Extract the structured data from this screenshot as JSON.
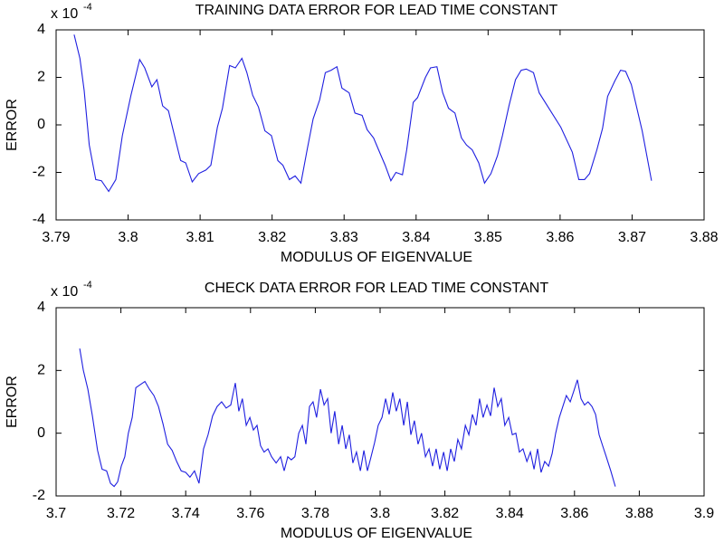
{
  "chart_data": [
    {
      "type": "line",
      "title": "TRAINING DATA ERROR FOR LEAD TIME CONSTANT",
      "xlabel": "MODULUS OF EIGENVALUE",
      "ylabel": "ERROR",
      "y_scale_base": "x 10",
      "y_scale_exponent": "-4",
      "xlim": [
        3.79,
        3.88
      ],
      "xticks": [
        3.79,
        3.8,
        3.81,
        3.82,
        3.83,
        3.84,
        3.85,
        3.86,
        3.87,
        3.88
      ],
      "ylim": [
        -4,
        4
      ],
      "yticks": [
        -4,
        -2,
        0,
        2,
        4
      ],
      "x": [
        3.7925,
        3.7933,
        3.7939,
        3.7946,
        3.7955,
        3.7963,
        3.7973,
        3.7983,
        3.7992,
        3.8004,
        3.8016,
        3.8023,
        3.8033,
        3.804,
        3.8048,
        3.8056,
        3.8066,
        3.8073,
        3.808,
        3.8089,
        3.8098,
        3.8108,
        3.8115,
        3.8124,
        3.8131,
        3.8141,
        3.8149,
        3.8158,
        3.8165,
        3.8173,
        3.8181,
        3.819,
        3.8199,
        3.8208,
        3.8215,
        3.8224,
        3.8232,
        3.824,
        3.8249,
        3.8257,
        3.8266,
        3.8274,
        3.8282,
        3.829,
        3.8297,
        3.8307,
        3.8315,
        3.8325,
        3.8332,
        3.8341,
        3.835,
        3.8357,
        3.8365,
        3.8372,
        3.8381,
        3.8387,
        3.8396,
        3.8402,
        3.8413,
        3.842,
        3.8429,
        3.8437,
        3.8445,
        3.8454,
        3.8463,
        3.847,
        3.8478,
        3.8487,
        3.8495,
        3.8504,
        3.8513,
        3.852,
        3.8529,
        3.8538,
        3.8546,
        3.8553,
        3.8563,
        3.8571,
        3.8601,
        3.8617,
        3.8626,
        3.8634,
        3.8641,
        3.8651,
        3.8659,
        3.8666,
        3.8676,
        3.8684,
        3.8691,
        3.8699,
        3.8714,
        3.8727
      ],
      "series": [
        {
          "color": "#1f1fe0",
          "values": [
            3.8,
            2.8,
            1.45,
            -0.84,
            -2.3,
            -2.35,
            -2.8,
            -2.3,
            -0.45,
            1.25,
            2.75,
            2.4,
            1.6,
            1.9,
            0.8,
            0.6,
            -0.65,
            -1.5,
            -1.6,
            -2.4,
            -2.05,
            -1.9,
            -1.7,
            -0.1,
            0.7,
            2.5,
            2.4,
            2.8,
            2.2,
            1.25,
            0.75,
            -0.25,
            -0.45,
            -1.5,
            -1.7,
            -2.3,
            -2.15,
            -2.45,
            -1.0,
            0.25,
            1.05,
            2.2,
            2.3,
            2.45,
            1.55,
            1.35,
            0.5,
            0.4,
            -0.2,
            -0.55,
            -1.2,
            -1.7,
            -2.35,
            -2.0,
            -2.1,
            -1.05,
            0.95,
            1.15,
            2.0,
            2.4,
            2.45,
            1.35,
            0.7,
            0.5,
            -0.55,
            -0.85,
            -1.05,
            -1.6,
            -2.45,
            -2.05,
            -1.3,
            -0.45,
            0.8,
            1.9,
            2.3,
            2.35,
            2.2,
            1.35,
            -0.1,
            -1.15,
            -2.3,
            -2.3,
            -2.05,
            -1.05,
            -0.15,
            1.2,
            1.85,
            2.3,
            2.25,
            1.7,
            -0.25,
            -2.35
          ]
        }
      ]
    },
    {
      "type": "line",
      "title": "CHECK DATA ERROR FOR LEAD TIME CONSTANT",
      "xlabel": "MODULUS OF EIGENVALUE",
      "ylabel": "ERROR",
      "y_scale_base": "x 10",
      "y_scale_exponent": "-4",
      "xlim": [
        3.7,
        3.9
      ],
      "xticks": [
        3.7,
        3.72,
        3.74,
        3.76,
        3.78,
        3.8,
        3.82,
        3.84,
        3.86,
        3.88,
        3.9
      ],
      "ylim": [
        -2,
        4
      ],
      "yticks": [
        -2,
        0,
        2,
        4
      ],
      "x": [
        3.7073,
        3.7084,
        3.7098,
        3.7112,
        3.7128,
        3.7142,
        3.7156,
        3.7168,
        3.7179,
        3.719,
        3.7201,
        3.7212,
        3.7223,
        3.7235,
        3.7246,
        3.726,
        3.7274,
        3.7288,
        3.7302,
        3.7316,
        3.733,
        3.7344,
        3.7358,
        3.7372,
        3.7386,
        3.74,
        3.7413,
        3.7427,
        3.7441,
        3.7455,
        3.7469,
        3.7483,
        3.7497,
        3.7511,
        3.7525,
        3.7539,
        3.7553,
        3.7564,
        3.7575,
        3.7587,
        3.7598,
        3.7609,
        3.762,
        3.7631,
        3.7642,
        3.7654,
        3.7665,
        3.7679,
        3.7693,
        3.7704,
        3.7715,
        3.7726,
        3.7737,
        3.7749,
        3.776,
        3.7771,
        3.7782,
        3.7793,
        3.7804,
        3.7816,
        3.7827,
        3.7838,
        3.7849,
        3.786,
        3.7872,
        3.7883,
        3.7894,
        3.7905,
        3.7916,
        3.7927,
        3.7939,
        3.795,
        3.7961,
        3.7972,
        3.7983,
        3.7994,
        3.8006,
        3.8017,
        3.8028,
        3.8039,
        3.805,
        3.8061,
        3.8073,
        3.8084,
        3.8095,
        3.8106,
        3.8117,
        3.8128,
        3.814,
        3.8151,
        3.8162,
        3.8173,
        3.8184,
        3.8196,
        3.8207,
        3.8218,
        3.8229,
        3.824,
        3.8251,
        3.8263,
        3.8274,
        3.8285,
        3.8296,
        3.8307,
        3.8318,
        3.833,
        3.8341,
        3.8352,
        3.8363,
        3.8374,
        3.8385,
        3.8397,
        3.8408,
        3.8419,
        3.843,
        3.8441,
        3.8453,
        3.8464,
        3.8475,
        3.8486,
        3.8497,
        3.8508,
        3.852,
        3.8531,
        3.8542,
        3.8553,
        3.8564,
        3.8575,
        3.8587,
        3.8598,
        3.8609,
        3.862,
        3.8631,
        3.8642,
        3.8654,
        3.8665,
        3.8676,
        3.8687,
        3.8698,
        3.8712,
        3.8726
      ],
      "series": [
        {
          "color": "#1f1fe0",
          "values": [
            2.7,
            2.0,
            1.4,
            0.55,
            -0.55,
            -1.15,
            -1.2,
            -1.6,
            -1.7,
            -1.55,
            -1.05,
            -0.75,
            0,
            0.5,
            1.45,
            1.55,
            1.65,
            1.4,
            1.2,
            0.85,
            0.3,
            -0.35,
            -0.55,
            -0.9,
            -1.2,
            -1.25,
            -1.4,
            -1.2,
            -1.6,
            -0.5,
            -0.05,
            0.55,
            0.85,
            1.0,
            0.8,
            0.9,
            1.6,
            0.7,
            1.1,
            0.25,
            0.5,
            0.1,
            0.25,
            -0.4,
            -0.6,
            -0.5,
            -0.75,
            -0.95,
            -0.75,
            -1.2,
            -0.75,
            -0.85,
            -0.75,
            0,
            0.25,
            -0.35,
            0.85,
            1.0,
            0.5,
            1.4,
            0.9,
            1.1,
            0,
            0.7,
            -0.35,
            0.25,
            -0.5,
            -0.05,
            -0.95,
            -0.6,
            -1.2,
            -0.55,
            -1.2,
            -0.75,
            -0.3,
            0.25,
            0.5,
            1.1,
            0.6,
            1.3,
            0.7,
            1.1,
            0.25,
            1.0,
            -0.05,
            0.4,
            -0.35,
            0,
            -0.75,
            -0.5,
            -1.05,
            -0.5,
            -1.15,
            -0.6,
            -1.2,
            -0.5,
            -0.9,
            -0.2,
            -0.5,
            0.25,
            -0.05,
            0.6,
            0.25,
            1.1,
            0.5,
            0.9,
            0.55,
            1.45,
            0.85,
            1.1,
            0.25,
            0.5,
            -0.05,
            0,
            -0.6,
            -0.5,
            -0.9,
            -0.6,
            -1.15,
            -0.5,
            -1.25,
            -0.9,
            -1.05,
            -0.65,
            0,
            0.5,
            0.85,
            1.2,
            1.0,
            1.35,
            1.7,
            1.1,
            0.9,
            1.0,
            0.85,
            0.6,
            -0.05,
            -0.4,
            -0.75,
            -1.2,
            -1.7
          ]
        }
      ]
    }
  ]
}
